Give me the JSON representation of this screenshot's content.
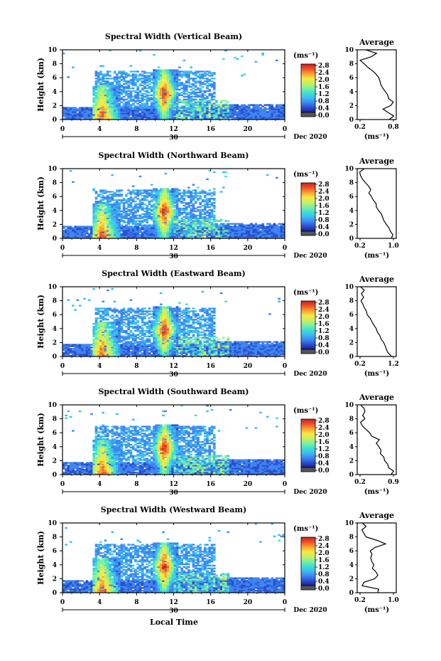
{
  "figure": {
    "xlabel": "Local Time",
    "date_label": "30",
    "month_label": "Dec 2020",
    "height_label": "Height (km)",
    "unit_label": "(ms⁻¹)",
    "colorbar_ticks": [
      "0.0",
      "0.4",
      "0.8",
      "1.2",
      "1.6",
      "2.0",
      "2.4",
      "2.8"
    ],
    "x_ticks": [
      "0",
      "4",
      "8",
      "12",
      "16",
      "20",
      "0"
    ],
    "y_ticks": [
      "0",
      "2",
      "4",
      "6",
      "8",
      "10"
    ],
    "avg_title": "Average",
    "colors": {
      "scale": [
        "#1e1e8c",
        "#2a4fd0",
        "#3e86f0",
        "#3cbcf2",
        "#3ee0d0",
        "#7ef0a0",
        "#c8f060",
        "#f8e840",
        "#f8a030",
        "#f05028",
        "#c81e1e"
      ],
      "low": "#555555"
    }
  },
  "chart_data": [
    {
      "type": "heatmap",
      "title": "Spectral Width (Vertical Beam)",
      "xlabel": "Local Time",
      "ylabel": "Height (km)",
      "xlim": [
        0,
        24
      ],
      "ylim": [
        0,
        10
      ],
      "clim": [
        0,
        3
      ],
      "profile": {
        "title": "Average",
        "xticks": [
          "0.2",
          "0.8"
        ],
        "xlim": [
          0.2,
          0.8
        ],
        "heights": [
          0,
          0.5,
          1,
          1.5,
          2,
          2.5,
          3,
          3.5,
          4,
          4.5,
          5,
          5.5,
          6,
          6.5,
          7,
          7.5,
          8,
          8.5,
          9,
          9.5,
          10
        ],
        "values": [
          0.72,
          0.8,
          0.7,
          0.62,
          0.75,
          0.8,
          0.72,
          0.7,
          0.66,
          0.6,
          0.58,
          0.56,
          0.54,
          0.48,
          0.42,
          0.34,
          0.28,
          0.2,
          0.4,
          0.5,
          0.3
        ]
      }
    },
    {
      "type": "heatmap",
      "title": "Spectral Width (Northward Beam)",
      "xlabel": "Local Time",
      "ylabel": "Height (km)",
      "xlim": [
        0,
        24
      ],
      "ylim": [
        0,
        10
      ],
      "clim": [
        0,
        3
      ],
      "profile": {
        "title": "Average",
        "xticks": [
          "0.2",
          "1.0"
        ],
        "xlim": [
          0.2,
          1.0
        ],
        "heights": [
          0,
          0.5,
          1,
          1.5,
          2,
          2.5,
          3,
          3.5,
          4,
          4.5,
          5,
          5.5,
          6,
          6.5,
          7,
          7.5,
          8,
          8.5,
          9,
          9.5,
          10
        ],
        "values": [
          0.95,
          1.0,
          0.92,
          0.9,
          0.82,
          0.78,
          0.75,
          0.72,
          0.65,
          0.6,
          0.58,
          0.52,
          0.48,
          0.42,
          0.45,
          0.4,
          0.32,
          0.25,
          0.22,
          0.2,
          0.3
        ]
      }
    },
    {
      "type": "heatmap",
      "title": "Spectral Width (Eastward Beam)",
      "xlabel": "Local Time",
      "ylabel": "Height (km)",
      "xlim": [
        0,
        24
      ],
      "ylim": [
        0,
        10
      ],
      "clim": [
        0,
        3
      ],
      "profile": {
        "title": "Average",
        "xticks": [
          "0.2",
          "1.2"
        ],
        "xlim": [
          0.2,
          1.2
        ],
        "heights": [
          0,
          0.5,
          1,
          1.5,
          2,
          2.5,
          3,
          3.5,
          4,
          4.5,
          5,
          5.5,
          6,
          6.5,
          7,
          7.5,
          8,
          8.5,
          9,
          9.5,
          10
        ],
        "values": [
          1.15,
          1.05,
          1.0,
          0.95,
          0.9,
          0.82,
          0.8,
          0.72,
          0.68,
          0.62,
          0.55,
          0.5,
          0.42,
          0.38,
          0.32,
          0.28,
          0.22,
          0.3,
          0.25,
          0.32,
          0.22
        ]
      }
    },
    {
      "type": "heatmap",
      "title": "Spectral Width (Southward Beam)",
      "xlabel": "Local Time",
      "ylabel": "Height (km)",
      "xlim": [
        0,
        24
      ],
      "ylim": [
        0,
        10
      ],
      "clim": [
        0,
        3
      ],
      "profile": {
        "title": "Average",
        "xticks": [
          "0.2",
          "0.9"
        ],
        "xlim": [
          0.2,
          0.9
        ],
        "heights": [
          0,
          0.5,
          1,
          1.5,
          2,
          2.5,
          3,
          3.5,
          4,
          4.5,
          5,
          5.5,
          6,
          6.5,
          7,
          7.5,
          8,
          8.5,
          9,
          9.5,
          10
        ],
        "values": [
          0.85,
          0.9,
          0.8,
          0.78,
          0.72,
          0.7,
          0.62,
          0.65,
          0.6,
          0.55,
          0.6,
          0.45,
          0.4,
          0.32,
          0.25,
          0.22,
          0.3,
          0.25,
          0.3,
          0.28,
          0.22
        ]
      }
    },
    {
      "type": "heatmap",
      "title": "Spectral Width (Westward Beam)",
      "xlabel": "Local Time",
      "ylabel": "Height (km)",
      "xlim": [
        0,
        24
      ],
      "ylim": [
        0,
        10
      ],
      "clim": [
        0,
        3
      ],
      "profile": {
        "title": "Average",
        "xticks": [
          "0.2",
          "1.0"
        ],
        "xlim": [
          0.2,
          1.0
        ],
        "heights": [
          0,
          0.5,
          1,
          1.5,
          2,
          2.5,
          3,
          3.5,
          4,
          4.5,
          5,
          5.5,
          6,
          6.5,
          7,
          7.5,
          8,
          8.5,
          9,
          9.5,
          10
        ],
        "values": [
          0.62,
          0.65,
          0.25,
          0.3,
          0.55,
          0.62,
          0.58,
          0.5,
          0.52,
          0.48,
          0.45,
          0.48,
          0.45,
          0.55,
          0.8,
          0.6,
          0.35,
          0.3,
          0.25,
          0.35,
          0.25
        ]
      }
    }
  ]
}
